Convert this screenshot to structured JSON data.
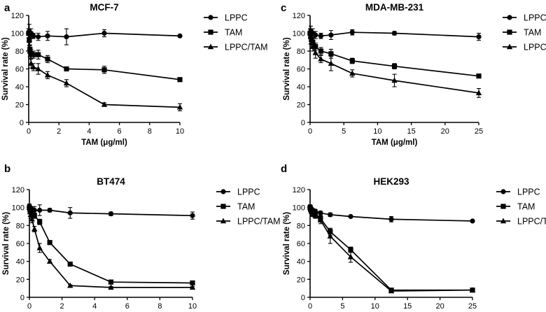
{
  "chart_data": [
    {
      "panel": "a",
      "type": "line",
      "title": "MCF-7",
      "xlabel": "TAM (μg/ml)",
      "ylabel": "Survival rate (%)",
      "xlim": [
        0,
        10
      ],
      "ylim": [
        0,
        120
      ],
      "xticks": [
        0,
        2,
        4,
        6,
        8,
        10
      ],
      "yticks": [
        0,
        20,
        40,
        60,
        80,
        100,
        120
      ],
      "legend_position": "right",
      "x": [
        0,
        0.04,
        0.08,
        0.16,
        0.31,
        0.63,
        1.25,
        2.5,
        5,
        10
      ],
      "series": [
        {
          "name": "LPPC",
          "marker": "circle",
          "values": [
            100,
            102,
            98,
            100,
            97,
            96,
            97,
            96,
            100,
            97
          ],
          "errors": [
            5,
            8,
            4,
            5,
            3,
            4,
            5,
            9,
            4,
            1
          ]
        },
        {
          "name": "TAM",
          "marker": "square",
          "values": [
            100,
            92,
            82,
            77,
            76,
            76,
            71,
            60,
            59,
            48
          ],
          "errors": [
            5,
            6,
            5,
            5,
            4,
            5,
            4,
            2,
            4,
            1
          ]
        },
        {
          "name": "LPPC/TAM",
          "marker": "triangle",
          "values": [
            100,
            93,
            80,
            66,
            62,
            60,
            53,
            44,
            20,
            17
          ],
          "errors": [
            5,
            7,
            6,
            5,
            4,
            6,
            4,
            4,
            2,
            4
          ]
        }
      ]
    },
    {
      "panel": "c",
      "type": "line",
      "title": "MDA-MB-231",
      "xlabel": "TAM (μg/ml)",
      "ylabel": "Survival rate (%)",
      "xlim": [
        0,
        25
      ],
      "ylim": [
        0,
        120
      ],
      "xticks": [
        0,
        5,
        10,
        15,
        20,
        25
      ],
      "yticks": [
        0,
        20,
        40,
        60,
        80,
        100,
        120
      ],
      "legend_position": "right",
      "x": [
        0,
        0.1,
        0.2,
        0.4,
        0.8,
        1.6,
        3.1,
        6.25,
        12.5,
        25
      ],
      "series": [
        {
          "name": "LPPC",
          "marker": "circle",
          "values": [
            100,
            102,
            99,
            100,
            98,
            97,
            98,
            101,
            100,
            96
          ],
          "errors": [
            5,
            6,
            4,
            5,
            4,
            3,
            5,
            3,
            2,
            4
          ]
        },
        {
          "name": "TAM",
          "marker": "square",
          "values": [
            100,
            97,
            93,
            90,
            85,
            80,
            77,
            69,
            63,
            52
          ],
          "errors": [
            5,
            6,
            6,
            5,
            4,
            4,
            5,
            3,
            3,
            2
          ]
        },
        {
          "name": "LPPC/TAM",
          "marker": "triangle",
          "values": [
            100,
            96,
            90,
            85,
            78,
            71,
            66,
            55,
            47,
            33
          ],
          "errors": [
            5,
            8,
            7,
            5,
            6,
            4,
            8,
            4,
            7,
            5
          ]
        }
      ]
    },
    {
      "panel": "b",
      "type": "line",
      "title": "BT474",
      "xlabel": "TAM (μg/ml)",
      "ylabel": "Survival rate (%)",
      "xlim": [
        0,
        10
      ],
      "ylim": [
        0,
        120
      ],
      "xticks": [
        0,
        2,
        4,
        6,
        8,
        10
      ],
      "yticks": [
        0,
        20,
        40,
        60,
        80,
        100,
        120
      ],
      "legend_position": "right",
      "x": [
        0,
        0.04,
        0.08,
        0.16,
        0.31,
        0.63,
        1.25,
        2.5,
        5,
        10
      ],
      "series": [
        {
          "name": "LPPC",
          "marker": "circle",
          "values": [
            100,
            98,
            99,
            98,
            97,
            97,
            97,
            94,
            93,
            91
          ],
          "errors": [
            3,
            3,
            2,
            3,
            4,
            6,
            2,
            6,
            2,
            4
          ]
        },
        {
          "name": "TAM",
          "marker": "square",
          "values": [
            100,
            97,
            96,
            94,
            91,
            84,
            61,
            37,
            17,
            16
          ],
          "errors": [
            3,
            3,
            3,
            3,
            3,
            3,
            2,
            2,
            2,
            1
          ]
        },
        {
          "name": "LPPC/TAM",
          "marker": "triangle",
          "values": [
            100,
            95,
            92,
            87,
            76,
            55,
            40,
            13,
            11,
            11
          ],
          "errors": [
            4,
            5,
            4,
            4,
            3,
            5,
            2,
            1,
            1,
            1
          ]
        }
      ]
    },
    {
      "panel": "d",
      "type": "line",
      "title": "HEK293",
      "xlabel": "TAM (μg/ml)",
      "ylabel": "Survival rate (%)",
      "xlim": [
        0,
        25
      ],
      "ylim": [
        0,
        120
      ],
      "xticks": [
        0,
        5,
        10,
        15,
        20,
        25
      ],
      "yticks": [
        0,
        20,
        40,
        60,
        80,
        100,
        120
      ],
      "legend_position": "right",
      "x": [
        0,
        0.1,
        0.2,
        0.4,
        0.8,
        1.6,
        3.1,
        6.25,
        12.5,
        25
      ],
      "series": [
        {
          "name": "LPPC",
          "marker": "circle",
          "values": [
            100,
            99,
            98,
            97,
            96,
            94,
            92,
            90,
            87,
            85
          ],
          "errors": [
            2,
            2,
            2,
            2,
            2,
            2,
            2,
            1,
            3,
            1
          ]
        },
        {
          "name": "TAM",
          "marker": "square",
          "values": [
            100,
            98,
            96,
            94,
            92,
            88,
            73,
            53,
            8,
            8
          ],
          "errors": [
            3,
            3,
            2,
            2,
            3,
            3,
            4,
            3,
            1,
            1
          ]
        },
        {
          "name": "LPPC/TAM",
          "marker": "triangle",
          "values": [
            100,
            98,
            96,
            93,
            91,
            86,
            68,
            45,
            7,
            8
          ],
          "errors": [
            3,
            3,
            3,
            3,
            3,
            4,
            8,
            6,
            1,
            1
          ]
        }
      ]
    }
  ]
}
